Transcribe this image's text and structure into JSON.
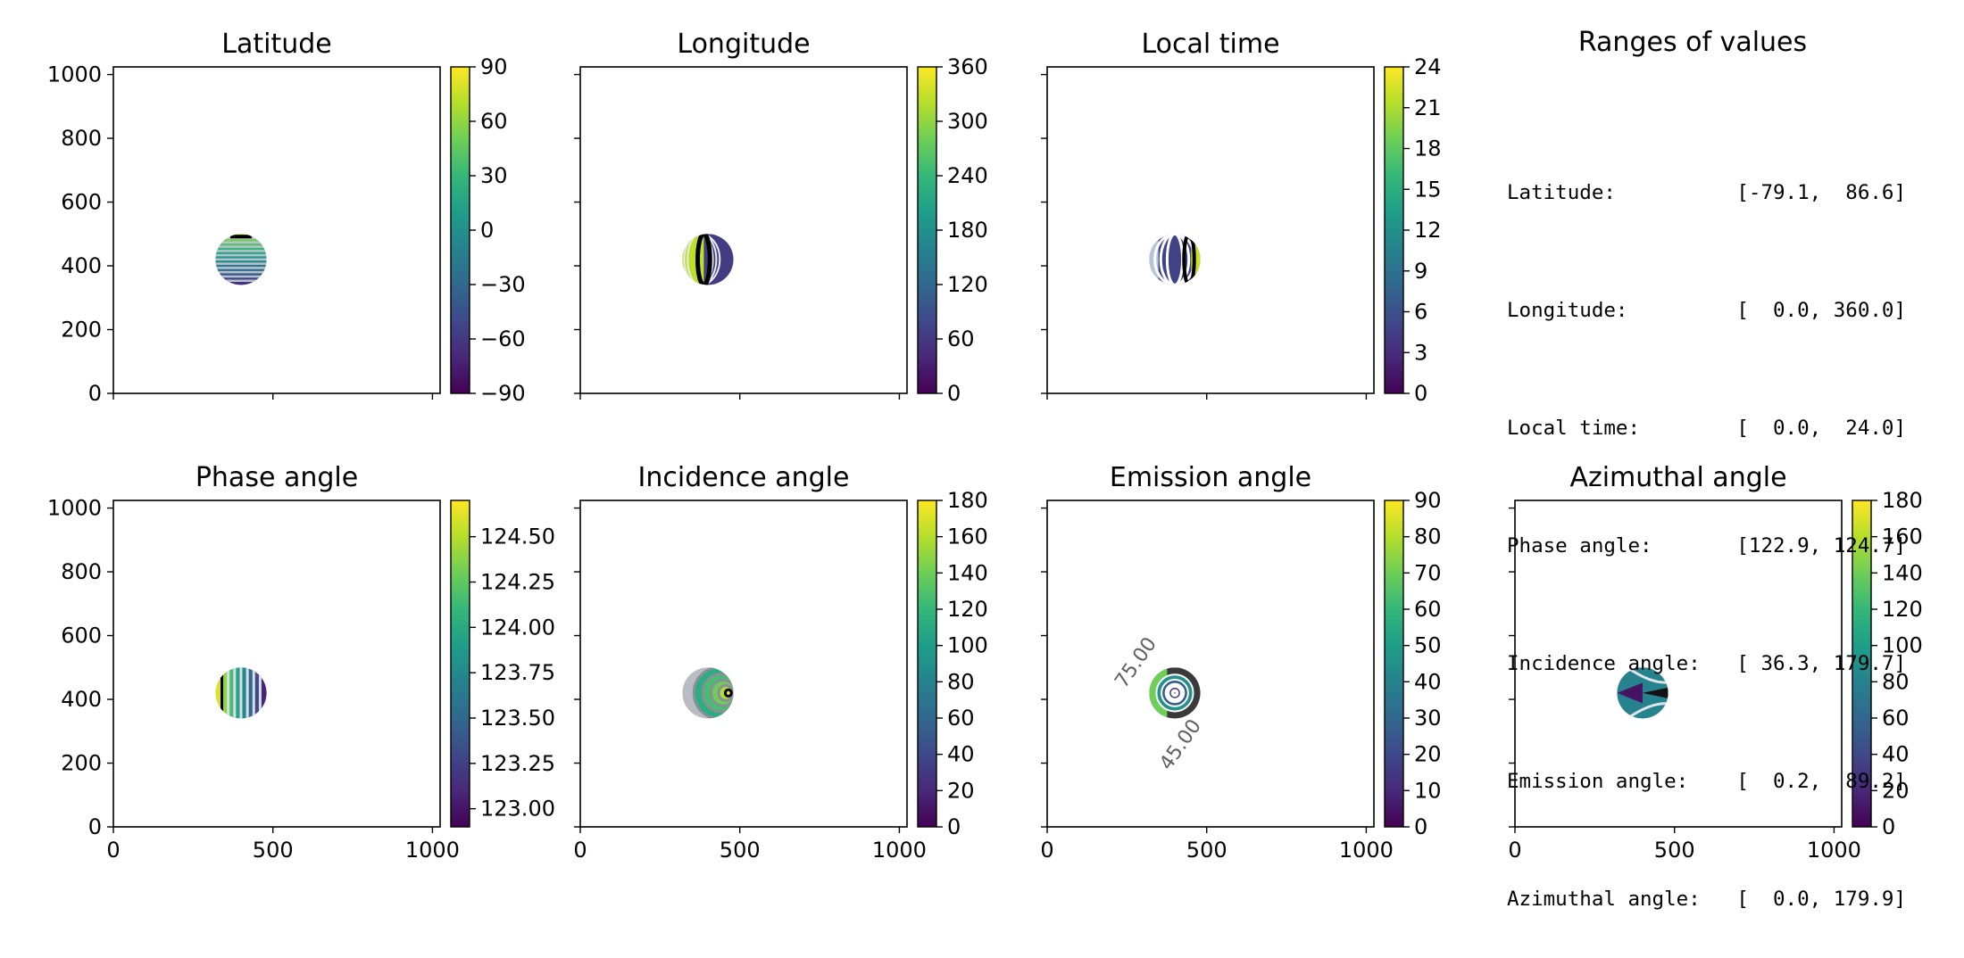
{
  "ranges_panel": {
    "title": "Ranges of values",
    "rows": [
      "Latitude:          [-79.1,  86.6]",
      "Longitude:         [  0.0, 360.0]",
      "Local time:        [  0.0,  24.0]",
      "Phase angle:       [122.9, 124.7]",
      "Incidence angle:   [ 36.3, 179.7]",
      "Emission angle:    [  0.2,  89.2]",
      "Azimuthal angle:   [  0.0, 179.9]"
    ]
  },
  "chart_data": [
    {
      "type": "heatmap",
      "title": "Latitude",
      "xlim": [
        0,
        1024
      ],
      "ylim": [
        0,
        1024
      ],
      "xticks": [
        0,
        500,
        1000
      ],
      "yticks": [
        0,
        200,
        400,
        600,
        800,
        1000
      ],
      "show_xticklabels": false,
      "show_yticklabels": true,
      "colorbar": {
        "range": [
          -90,
          90
        ],
        "ticks": [
          "90",
          "60",
          "30",
          "0",
          "−30",
          "−60",
          "−90"
        ],
        "tick_values": [
          90,
          60,
          30,
          0,
          -30,
          -60,
          -90
        ]
      },
      "disc": {
        "center": [
          400,
          420
        ],
        "radius": 80
      },
      "pattern": "latitude"
    },
    {
      "type": "heatmap",
      "title": "Longitude",
      "xlim": [
        0,
        1024
      ],
      "ylim": [
        0,
        1024
      ],
      "xticks": [
        0,
        500,
        1000
      ],
      "yticks": [
        0,
        200,
        400,
        600,
        800,
        1000
      ],
      "show_xticklabels": false,
      "show_yticklabels": false,
      "colorbar": {
        "range": [
          0,
          360
        ],
        "ticks": [
          "360",
          "300",
          "240",
          "180",
          "120",
          "60",
          "0"
        ],
        "tick_values": [
          360,
          300,
          240,
          180,
          120,
          60,
          0
        ]
      },
      "disc": {
        "center": [
          400,
          420
        ],
        "radius": 80
      },
      "pattern": "longitude"
    },
    {
      "type": "heatmap",
      "title": "Local time",
      "xlim": [
        0,
        1024
      ],
      "ylim": [
        0,
        1024
      ],
      "xticks": [
        0,
        500,
        1000
      ],
      "yticks": [
        0,
        200,
        400,
        600,
        800,
        1000
      ],
      "show_xticklabels": false,
      "show_yticklabels": false,
      "colorbar": {
        "range": [
          0,
          24
        ],
        "ticks": [
          "24",
          "21",
          "18",
          "15",
          "12",
          "9",
          "6",
          "3",
          "0"
        ],
        "tick_values": [
          24,
          21,
          18,
          15,
          12,
          9,
          6,
          3,
          0
        ]
      },
      "disc": {
        "center": [
          400,
          420
        ],
        "radius": 80
      },
      "pattern": "localtime"
    },
    {
      "type": "heatmap",
      "title": "Phase angle",
      "xlim": [
        0,
        1024
      ],
      "ylim": [
        0,
        1024
      ],
      "xticks": [
        0,
        500,
        1000
      ],
      "yticks": [
        0,
        200,
        400,
        600,
        800,
        1000
      ],
      "show_xticklabels": true,
      "show_yticklabels": true,
      "colorbar": {
        "range": [
          122.9,
          124.7
        ],
        "ticks": [
          "124.50",
          "124.25",
          "124.00",
          "123.75",
          "123.50",
          "123.25",
          "123.00"
        ],
        "tick_values": [
          124.5,
          124.25,
          124.0,
          123.75,
          123.5,
          123.25,
          123.0
        ]
      },
      "disc": {
        "center": [
          400,
          420
        ],
        "radius": 80
      },
      "pattern": "phase"
    },
    {
      "type": "heatmap",
      "title": "Incidence angle",
      "xlim": [
        0,
        1024
      ],
      "ylim": [
        0,
        1024
      ],
      "xticks": [
        0,
        500,
        1000
      ],
      "yticks": [
        0,
        200,
        400,
        600,
        800,
        1000
      ],
      "show_xticklabels": true,
      "show_yticklabels": false,
      "colorbar": {
        "range": [
          0,
          180
        ],
        "ticks": [
          "180",
          "160",
          "140",
          "120",
          "100",
          "80",
          "60",
          "40",
          "20",
          "0"
        ],
        "tick_values": [
          180,
          160,
          140,
          120,
          100,
          80,
          60,
          40,
          20,
          0
        ]
      },
      "disc": {
        "center": [
          400,
          420
        ],
        "radius": 80
      },
      "pattern": "incidence"
    },
    {
      "type": "heatmap",
      "title": "Emission angle",
      "xlim": [
        0,
        1024
      ],
      "ylim": [
        0,
        1024
      ],
      "xticks": [
        0,
        500,
        1000
      ],
      "yticks": [
        0,
        200,
        400,
        600,
        800,
        1000
      ],
      "show_xticklabels": true,
      "show_yticklabels": false,
      "colorbar": {
        "range": [
          0,
          90
        ],
        "ticks": [
          "90",
          "80",
          "70",
          "60",
          "50",
          "40",
          "30",
          "20",
          "10",
          "0"
        ],
        "tick_values": [
          90,
          80,
          70,
          60,
          50,
          40,
          30,
          20,
          10,
          0
        ]
      },
      "disc": {
        "center": [
          400,
          420
        ],
        "radius": 80
      },
      "pattern": "emission",
      "annotations": [
        "75.00",
        "45.00"
      ]
    },
    {
      "type": "heatmap",
      "title": "Azimuthal angle",
      "xlim": [
        0,
        1024
      ],
      "ylim": [
        0,
        1024
      ],
      "xticks": [
        0,
        500,
        1000
      ],
      "yticks": [
        0,
        200,
        400,
        600,
        800,
        1000
      ],
      "show_xticklabels": true,
      "show_yticklabels": false,
      "colorbar": {
        "range": [
          0,
          180
        ],
        "ticks": [
          "180",
          "160",
          "140",
          "120",
          "100",
          "80",
          "60",
          "40",
          "20",
          "0"
        ],
        "tick_values": [
          180,
          160,
          140,
          120,
          100,
          80,
          60,
          40,
          20,
          0
        ]
      },
      "disc": {
        "center": [
          400,
          420
        ],
        "radius": 80
      },
      "pattern": "azimuth"
    }
  ]
}
